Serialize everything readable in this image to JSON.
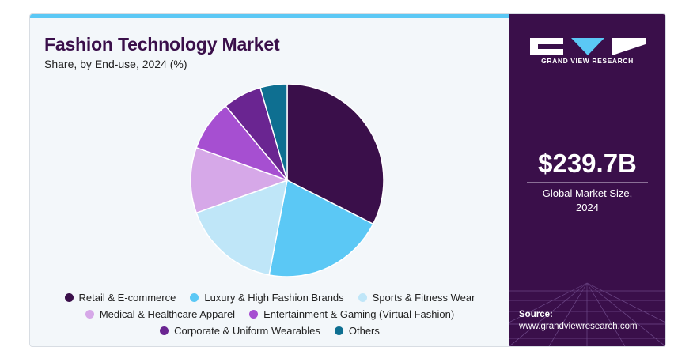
{
  "header": {
    "title": "Fashion Technology Market",
    "subtitle": "Share, by End-use, 2024 (%)"
  },
  "brand": {
    "name": "GRAND VIEW RESEARCH",
    "accent": "#5bc8f5",
    "panel_color": "#3a0f4a"
  },
  "stat": {
    "value": "$239.7B",
    "caption_line1": "Global Market Size,",
    "caption_line2": "2024"
  },
  "source": {
    "label": "Source:",
    "url": "www.grandviewresearch.com"
  },
  "chart_data": {
    "type": "pie",
    "title": "Fashion Technology Market",
    "subtitle": "Share, by End-use, 2024 (%)",
    "legend_position": "bottom",
    "slices": [
      {
        "name": "Retail & E-commerce",
        "value": 32.5,
        "color": "#3a0f4a"
      },
      {
        "name": "Luxury & High Fashion Brands",
        "value": 20.5,
        "color": "#5bc8f5"
      },
      {
        "name": "Sports & Fitness Wear",
        "value": 16.5,
        "color": "#bfe6f8"
      },
      {
        "name": "Medical & Healthcare Apparel",
        "value": 11.0,
        "color": "#d6a8e8"
      },
      {
        "name": "Entertainment & Gaming (Virtual Fashion)",
        "value": 8.5,
        "color": "#a64fd1"
      },
      {
        "name": "Corporate & Uniform Wearables",
        "value": 6.5,
        "color": "#6a2591"
      },
      {
        "name": "Others",
        "value": 4.5,
        "color": "#0e6f91"
      }
    ]
  }
}
